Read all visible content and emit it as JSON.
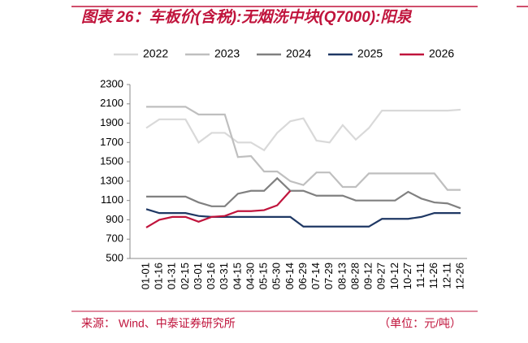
{
  "chart_data": {
    "type": "line",
    "title": "图表 26：车板价(含税):无烟洗中块(Q7000):阳泉",
    "source": "来源：  Wind、中泰证券研究所",
    "unit": "（单位：元/吨）",
    "categories": [
      "01-01",
      "01-16",
      "01-31",
      "02-15",
      "03-01",
      "03-16",
      "03-31",
      "04-15",
      "04-30",
      "05-15",
      "05-30",
      "06-14",
      "06-29",
      "07-14",
      "07-29",
      "08-13",
      "08-28",
      "09-12",
      "09-27",
      "10-12",
      "10-27",
      "11-11",
      "11-26",
      "12-11",
      "12-26"
    ],
    "ylim": [
      500,
      2300
    ],
    "yticks": [
      500,
      700,
      900,
      1100,
      1300,
      1500,
      1700,
      1900,
      2100,
      2300
    ],
    "series": [
      {
        "name": "2022",
        "color": "#d9d9d9",
        "values": [
          1850,
          1940,
          1940,
          1940,
          1700,
          1800,
          1800,
          1700,
          1700,
          1620,
          1800,
          1920,
          1950,
          1720,
          1700,
          1880,
          1730,
          1850,
          2030,
          2030,
          2030,
          2030,
          2030,
          2030,
          2040
        ]
      },
      {
        "name": "2023",
        "color": "#bfbfbf",
        "values": [
          2070,
          2070,
          2070,
          2070,
          1990,
          1990,
          1990,
          1550,
          1560,
          1400,
          1400,
          1300,
          1260,
          1390,
          1390,
          1240,
          1240,
          1380,
          1380,
          1380,
          1380,
          1380,
          1380,
          1210,
          1210
        ]
      },
      {
        "name": "2024",
        "color": "#808080",
        "values": [
          1140,
          1140,
          1140,
          1140,
          1080,
          1040,
          1040,
          1170,
          1200,
          1200,
          1330,
          1200,
          1200,
          1150,
          1150,
          1150,
          1100,
          1100,
          1100,
          1100,
          1190,
          1120,
          1080,
          1070,
          1020
        ]
      },
      {
        "name": "2025",
        "color": "#1f3864",
        "values": [
          1010,
          970,
          970,
          970,
          940,
          930,
          930,
          930,
          930,
          930,
          930,
          930,
          830,
          830,
          830,
          830,
          830,
          830,
          910,
          910,
          910,
          930,
          970,
          970,
          970
        ]
      },
      {
        "name": "2026",
        "color": "#c0143c",
        "values": [
          820,
          900,
          930,
          930,
          880,
          930,
          940,
          990,
          990,
          1000,
          1050,
          1200,
          null,
          null,
          null,
          null,
          null,
          null,
          null,
          null,
          null,
          null,
          null,
          null,
          null
        ]
      }
    ]
  }
}
